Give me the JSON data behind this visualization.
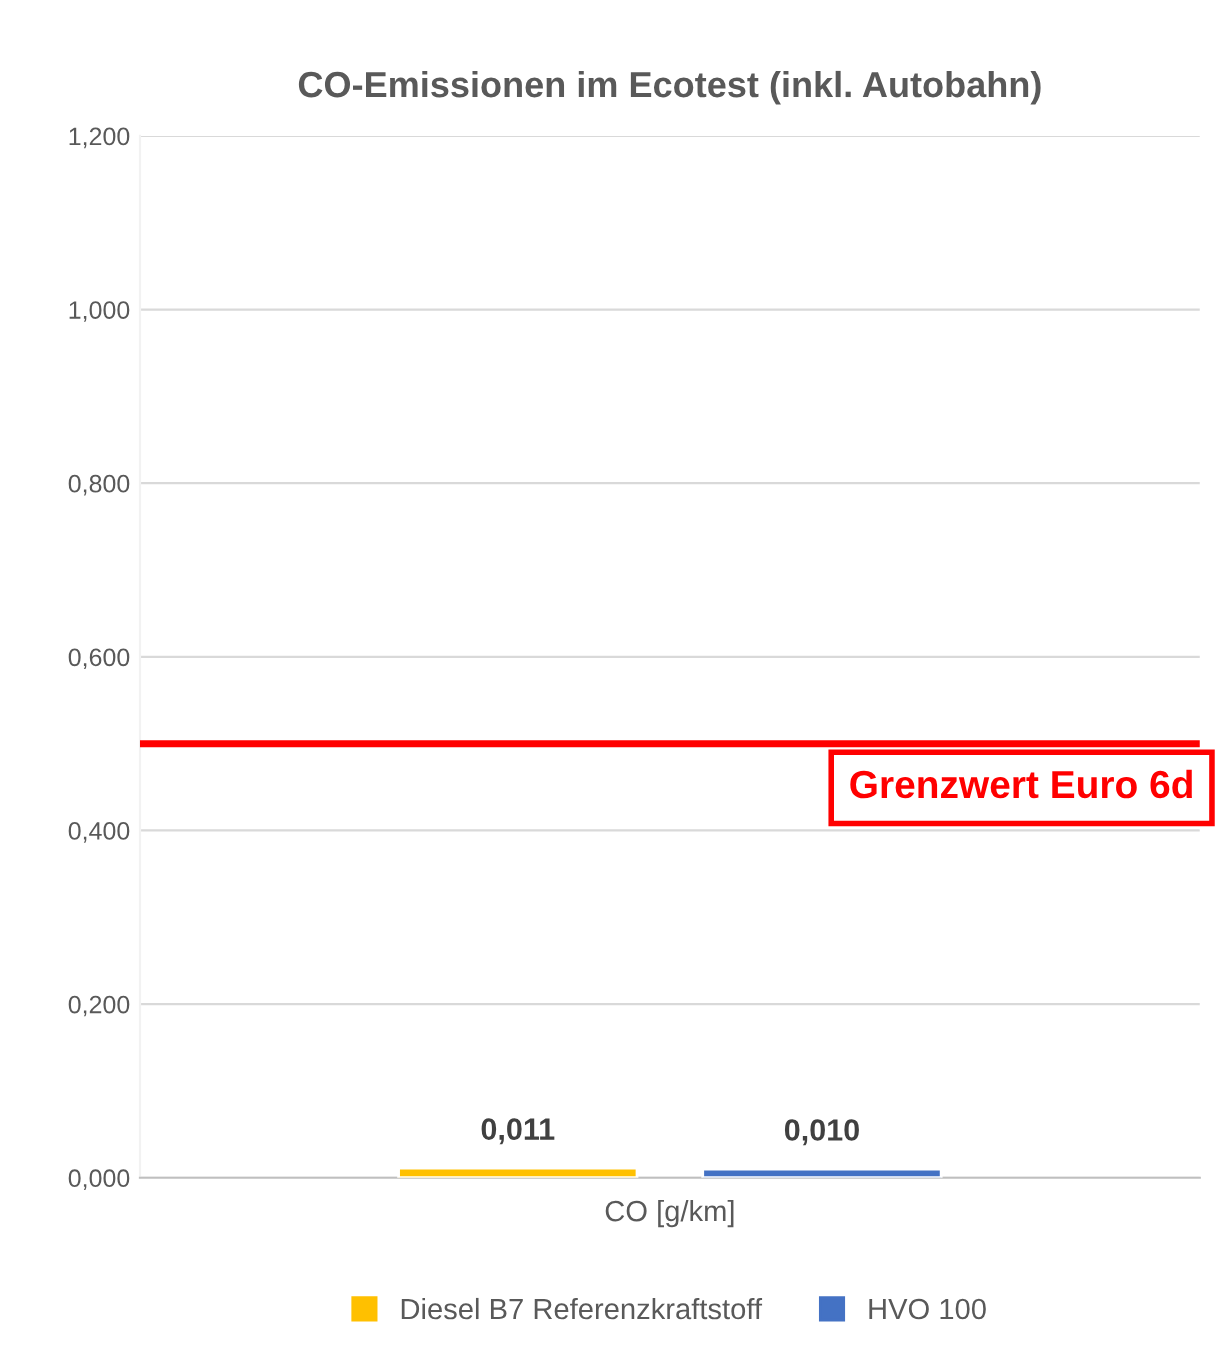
{
  "chart_data": {
    "type": "bar",
    "title": "CO-Emissionen im Ecotest (inkl. Autobahn)",
    "categories": [
      "CO [g/km]"
    ],
    "series": [
      {
        "name": "Diesel B7 Referenzkraftstoff",
        "color": "#ffc000",
        "values": [
          0.011
        ],
        "value_labels": [
          "0,011"
        ]
      },
      {
        "name": "HVO 100",
        "color": "#4472c4",
        "values": [
          0.01
        ],
        "value_labels": [
          "0,010"
        ]
      }
    ],
    "ylim": [
      0,
      1.2
    ],
    "yticks": [
      {
        "value": 0,
        "label": "0,000"
      },
      {
        "value": 0.2,
        "label": "0,200"
      },
      {
        "value": 0.4,
        "label": "0,400"
      },
      {
        "value": 0.6,
        "label": "0,600"
      },
      {
        "value": 0.8,
        "label": "0,800"
      },
      {
        "value": 1.0,
        "label": "1,000"
      },
      {
        "value": 1.2,
        "label": "1,200"
      }
    ],
    "ref_lines": [
      {
        "axis": "y",
        "value": 0.5,
        "label": "Grenzwert Euro 6d",
        "color": "#ff0000",
        "line_style": "solid"
      }
    ],
    "grid": "y",
    "legend": "bottom"
  }
}
